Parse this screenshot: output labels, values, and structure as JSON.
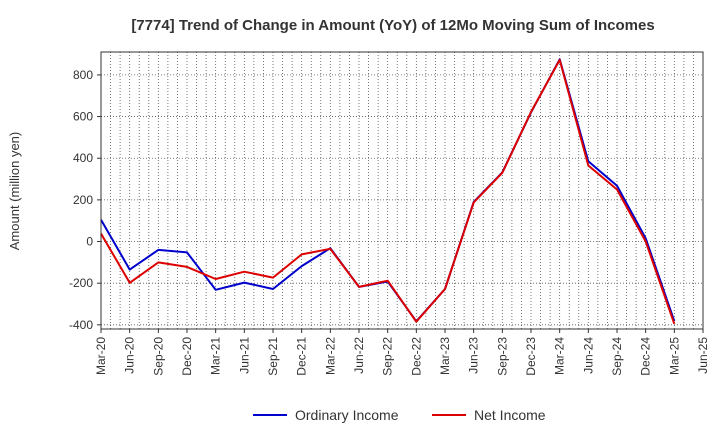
{
  "chart_data": {
    "type": "line",
    "title": "[7774]  Trend of Change in Amount (YoY) of 12Mo Moving Sum of Incomes",
    "xlabel": "",
    "ylabel": "Amount (million yen)",
    "ylim": [
      -420,
      910
    ],
    "yticks": [
      -400,
      -200,
      0,
      200,
      400,
      600,
      800
    ],
    "xtick_labels": [
      "Mar-20",
      "Jun-20",
      "Sep-20",
      "Dec-20",
      "Mar-21",
      "Jun-21",
      "Sep-21",
      "Dec-21",
      "Mar-22",
      "Jun-22",
      "Sep-22",
      "Dec-22",
      "Mar-23",
      "Jun-23",
      "Sep-23",
      "Dec-23",
      "Mar-24",
      "Jun-24",
      "Sep-24",
      "Dec-24",
      "Mar-25",
      "Jun-25"
    ],
    "x": [
      "Mar-20",
      "Apr-20",
      "May-20",
      "Jun-20",
      "Jul-20",
      "Aug-20",
      "Sep-20",
      "Oct-20",
      "Nov-20",
      "Dec-20",
      "Jan-21",
      "Feb-21",
      "Mar-21",
      "Apr-21",
      "May-21",
      "Jun-21",
      "Jul-21",
      "Aug-21",
      "Sep-21",
      "Oct-21",
      "Nov-21",
      "Dec-21",
      "Jan-22",
      "Feb-22",
      "Mar-22",
      "Apr-22",
      "May-22",
      "Jun-22",
      "Jul-22",
      "Aug-22",
      "Sep-22",
      "Oct-22",
      "Nov-22",
      "Dec-22",
      "Jan-23",
      "Feb-23",
      "Mar-23",
      "Apr-23",
      "May-23",
      "Jun-23",
      "Jul-23",
      "Aug-23",
      "Sep-23",
      "Oct-23",
      "Nov-23",
      "Dec-23",
      "Jan-24",
      "Feb-24",
      "Mar-24",
      "Apr-24",
      "May-24",
      "Jun-24",
      "Jul-24",
      "Aug-24",
      "Sep-24",
      "Oct-24",
      "Nov-24",
      "Dec-24",
      "Jan-25",
      "Feb-25",
      "Mar-25"
    ],
    "series": [
      {
        "name": "Ordinary Income",
        "color": "#0000cc",
        "values": [
          105,
          null,
          null,
          -135,
          null,
          null,
          -40,
          null,
          null,
          -52,
          null,
          null,
          -232,
          null,
          null,
          -197,
          null,
          null,
          -228,
          null,
          null,
          -118,
          null,
          null,
          -32,
          null,
          null,
          -218,
          null,
          null,
          -192,
          null,
          null,
          -383,
          null,
          null,
          -228,
          null,
          null,
          190,
          null,
          null,
          332,
          null,
          null,
          620,
          null,
          null,
          875,
          null,
          null,
          385,
          null,
          null,
          268,
          null,
          null,
          15,
          null,
          null,
          -382
        ]
      },
      {
        "name": "Net Income",
        "color": "#dd0000",
        "values": [
          38,
          null,
          null,
          -198,
          null,
          null,
          -100,
          null,
          null,
          -122,
          null,
          null,
          -180,
          null,
          null,
          -145,
          null,
          null,
          -173,
          null,
          null,
          -62,
          null,
          null,
          -35,
          null,
          null,
          -218,
          null,
          null,
          -188,
          null,
          null,
          -385,
          null,
          null,
          -228,
          null,
          null,
          188,
          null,
          null,
          330,
          null,
          null,
          622,
          null,
          null,
          872,
          null,
          null,
          365,
          null,
          null,
          250,
          null,
          null,
          0,
          null,
          null,
          -395
        ]
      }
    ],
    "legend_position": "bottom",
    "grid": true
  }
}
